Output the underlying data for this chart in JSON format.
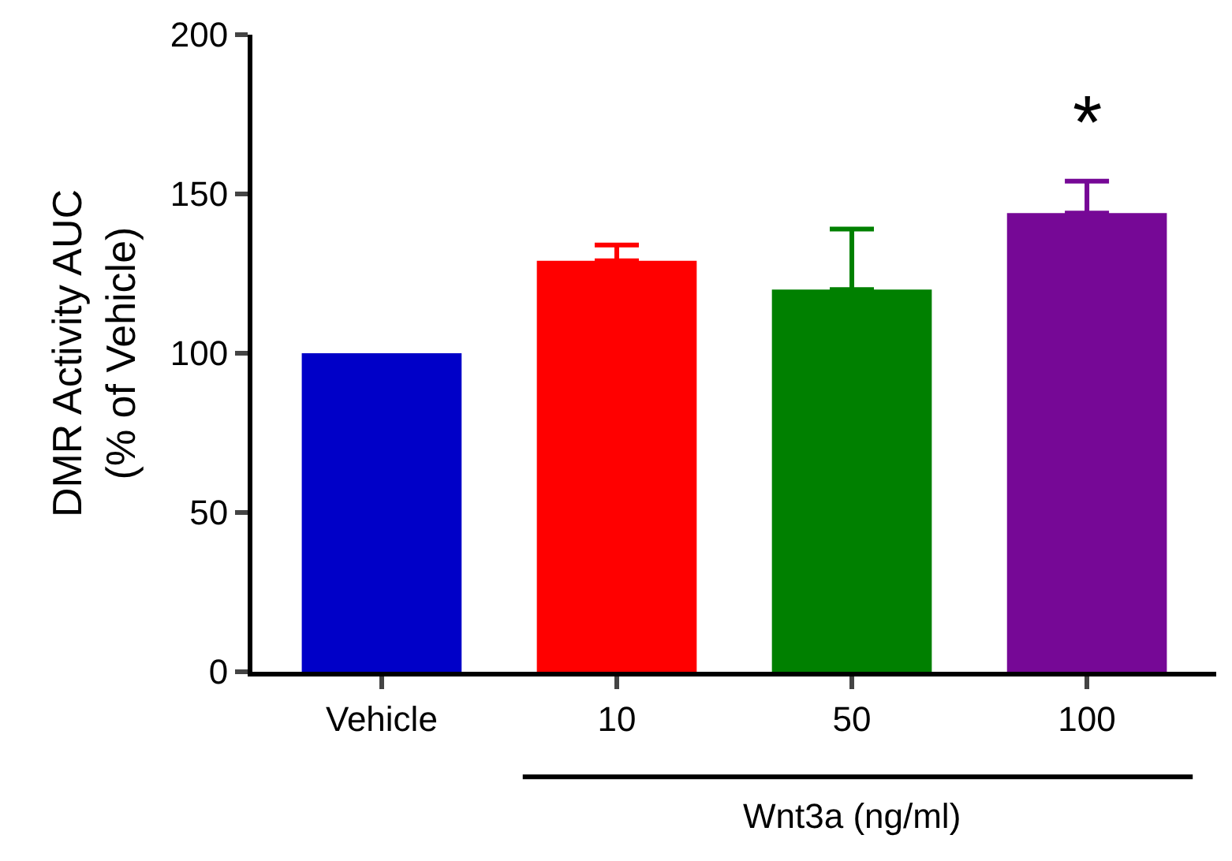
{
  "chart_data": {
    "type": "bar",
    "categories": [
      "Vehicle",
      "10",
      "50",
      "100"
    ],
    "values": [
      100,
      129,
      120,
      144
    ],
    "colors": [
      "#0000c8",
      "#ff0000",
      "#008000",
      "#760896"
    ],
    "errors": [
      null,
      [
        129,
        134
      ],
      [
        120,
        139
      ],
      [
        144,
        154
      ]
    ],
    "ylabel": "DMR Activity AUC\n(% of Vehicle)",
    "xlabel": "Wnt3a (ng/ml)",
    "annotations": [
      "*"
    ],
    "ylim": [
      0,
      200
    ],
    "yticks": [
      0,
      50,
      100,
      150,
      200
    ],
    "legend": false
  }
}
